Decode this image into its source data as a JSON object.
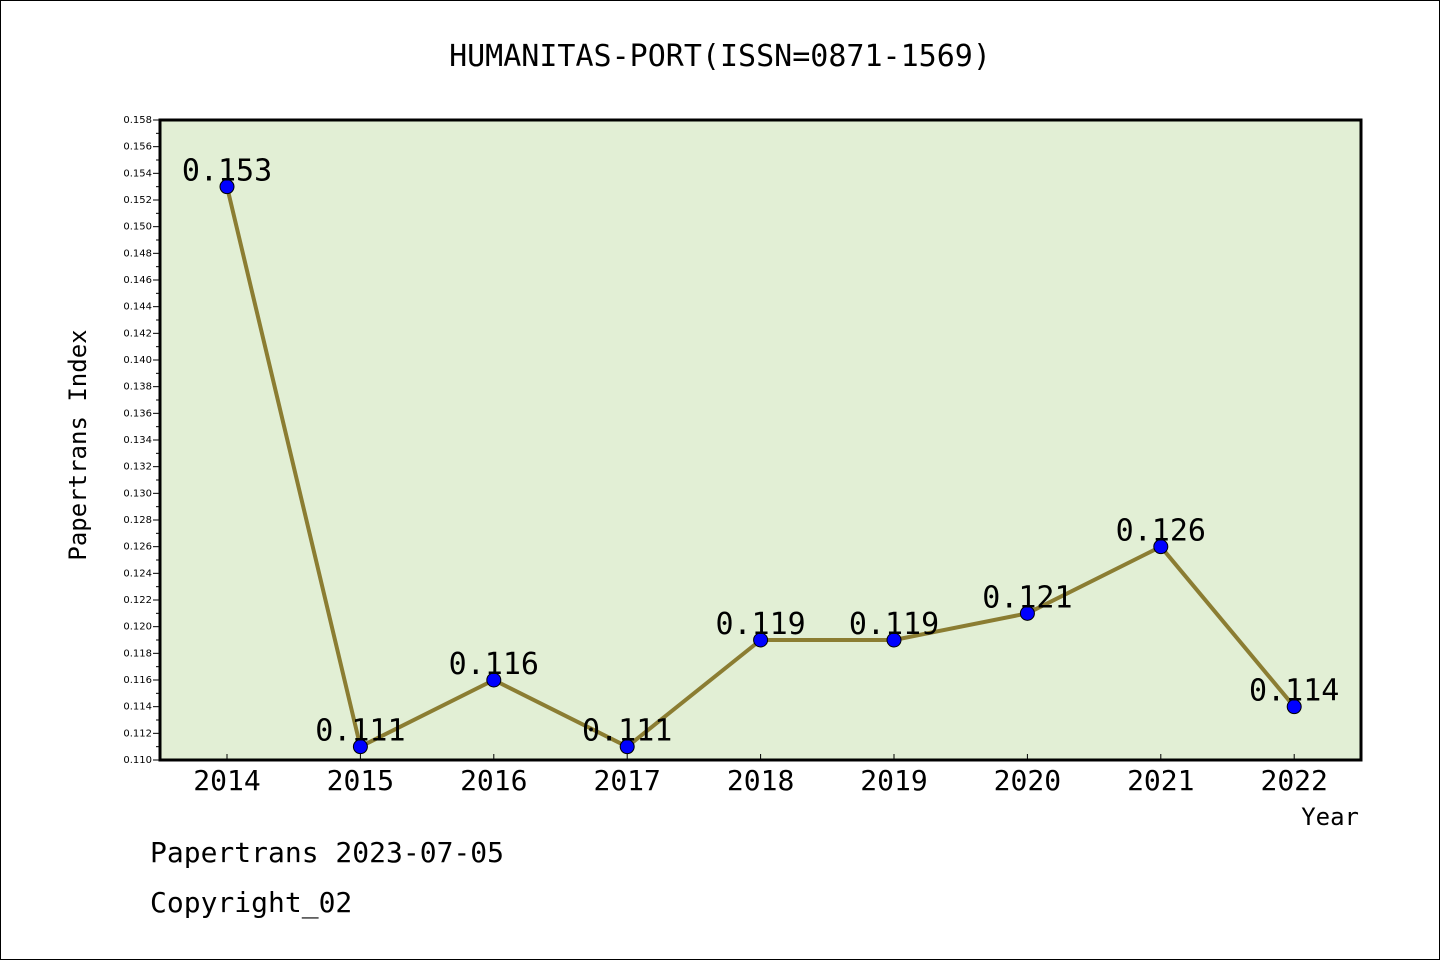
{
  "chart_data": {
    "type": "line",
    "title": "HUMANITAS-PORT(ISSN=0871-1569)",
    "xlabel": "Year",
    "ylabel": "Papertrans Index",
    "categories": [
      "2014",
      "2015",
      "2016",
      "2017",
      "2018",
      "2019",
      "2020",
      "2021",
      "2022"
    ],
    "series": [
      {
        "values": [
          0.153,
          0.111,
          0.116,
          0.111,
          0.119,
          0.119,
          0.121,
          0.126,
          0.114
        ],
        "labels": [
          "0.153",
          "0.111",
          "0.116",
          "0.111",
          "0.119",
          "0.119",
          "0.121",
          "0.126",
          "0.114"
        ]
      }
    ],
    "ylim": [
      0.11,
      0.158
    ],
    "ytick_step": 0.002,
    "yticks": [
      "0.110",
      "0.112",
      "0.114",
      "0.116",
      "0.118",
      "0.120",
      "0.122",
      "0.124",
      "0.126",
      "0.128",
      "0.130",
      "0.132",
      "0.134",
      "0.136",
      "0.138",
      "0.140",
      "0.142",
      "0.144",
      "0.146",
      "0.148",
      "0.150",
      "0.152",
      "0.154",
      "0.156",
      "0.158"
    ],
    "grid": false,
    "colors": {
      "plot_background": "#e2efd5",
      "line": "#8b7d32",
      "marker": "#0000ff"
    }
  },
  "footer": {
    "source": "Papertrans 2023-07-05",
    "copyright": "Copyright_02"
  }
}
